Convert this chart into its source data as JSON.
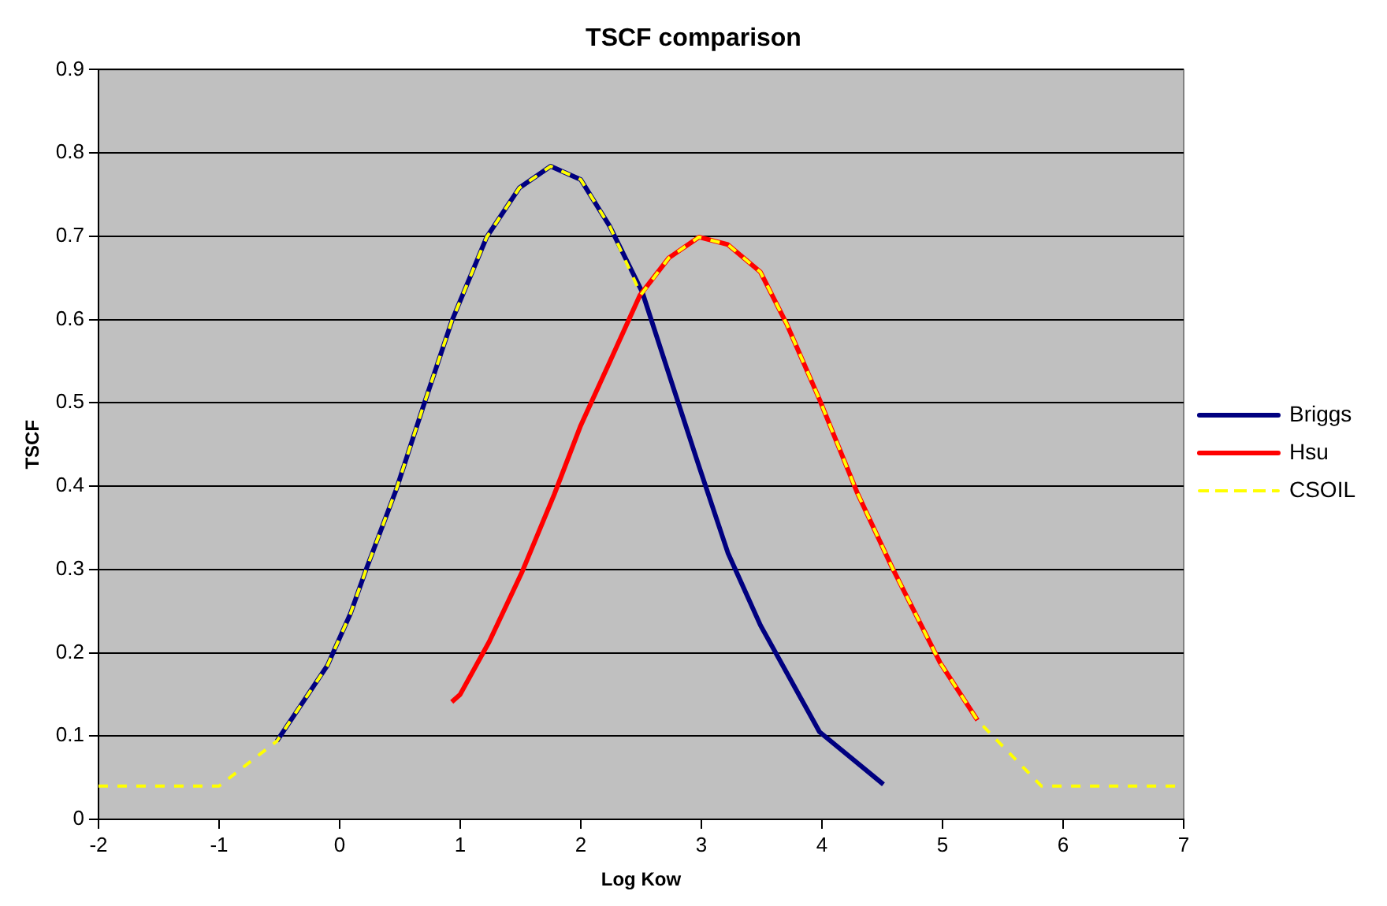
{
  "chart_data": {
    "type": "line",
    "title": "TSCF comparison",
    "xlabel": "Log Kow",
    "ylabel": "TSCF",
    "xlim": [
      -2,
      7
    ],
    "xticks": [
      -2,
      -1,
      0,
      1,
      2,
      3,
      4,
      5,
      6,
      7
    ],
    "ylim": [
      0,
      0.9
    ],
    "yticks": [
      0,
      0.1,
      0.2,
      0.3,
      0.4,
      0.5,
      0.6,
      0.7,
      0.8,
      0.9
    ],
    "grid": "y",
    "legend": "right",
    "marker": "none",
    "series": [
      {
        "name": "Briggs",
        "color": "#000080",
        "line_style": "solid",
        "x": [
          -0.52,
          -0.1,
          0.09,
          0.22,
          0.47,
          0.69,
          0.93,
          1.22,
          1.49,
          1.75,
          2.0,
          2.24,
          2.51,
          2.73,
          2.98,
          3.22,
          3.49,
          3.98,
          4.51
        ],
        "values": [
          0.094,
          0.185,
          0.247,
          0.3,
          0.396,
          0.494,
          0.598,
          0.699,
          0.758,
          0.784,
          0.768,
          0.712,
          0.633,
          0.535,
          0.424,
          0.32,
          0.233,
          0.105,
          0.042
        ]
      },
      {
        "name": "Hsu",
        "color": "#ff0000",
        "line_style": "solid",
        "x": [
          0.93,
          1.0,
          1.24,
          1.51,
          1.78,
          2.0,
          2.24,
          2.49,
          2.73,
          2.98,
          3.22,
          3.49,
          3.71,
          3.98,
          4.29,
          4.58,
          4.98,
          5.29
        ],
        "values": [
          0.141,
          0.15,
          0.213,
          0.296,
          0.39,
          0.473,
          0.549,
          0.629,
          0.674,
          0.699,
          0.69,
          0.657,
          0.594,
          0.504,
          0.393,
          0.303,
          0.188,
          0.119
        ]
      },
      {
        "name": "CSOIL",
        "color": "#ffff00",
        "line_style": "dashed",
        "x": [
          -2,
          -1,
          -0.52,
          -0.1,
          0.09,
          0.22,
          0.47,
          0.69,
          0.93,
          1.22,
          1.49,
          1.75,
          2.0,
          2.24,
          2.5,
          2.73,
          2.98,
          3.22,
          3.49,
          3.71,
          3.98,
          4.29,
          4.58,
          4.98,
          5.29,
          5.82,
          7
        ],
        "values": [
          0.04,
          0.04,
          0.094,
          0.185,
          0.247,
          0.3,
          0.396,
          0.494,
          0.598,
          0.699,
          0.758,
          0.784,
          0.768,
          0.712,
          0.63,
          0.674,
          0.699,
          0.69,
          0.657,
          0.594,
          0.504,
          0.393,
          0.303,
          0.188,
          0.119,
          0.04,
          0.04
        ]
      }
    ]
  }
}
